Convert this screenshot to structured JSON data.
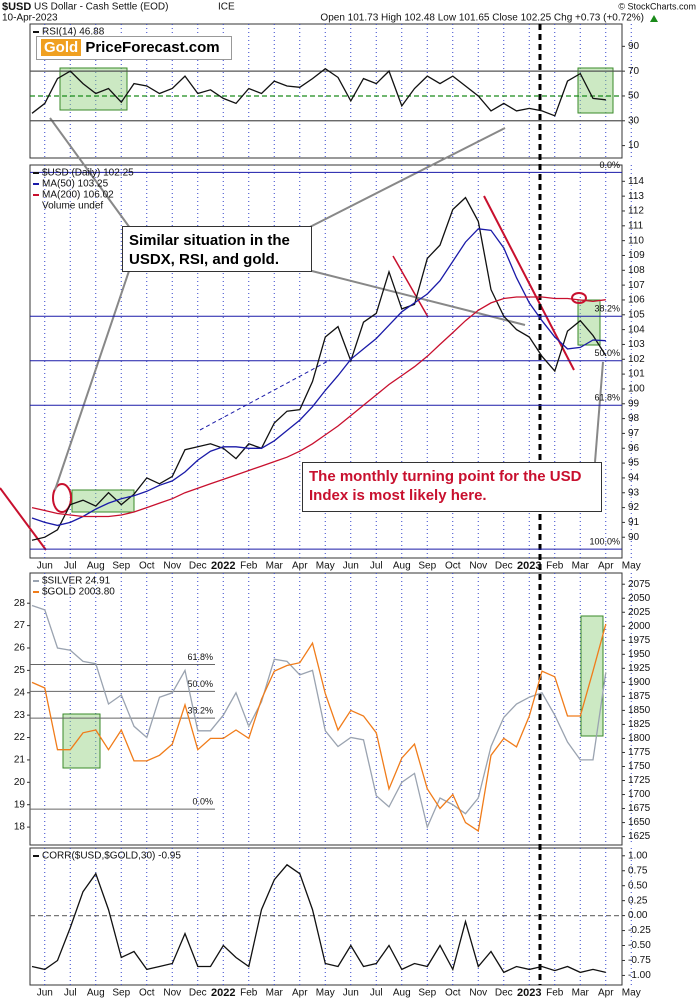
{
  "header": {
    "symbol": "$USD",
    "name": "US Dollar - Cash Settle (EOD)",
    "exchange": "ICE",
    "date": "10-Apr-2023",
    "quote": "Open 101.73  High 102.48  Low 101.65  Close 102.25  Chg +0.73 (+0.72%)",
    "watermark": "© StockCharts.com"
  },
  "logo": {
    "gold": "Gold",
    "rest": "PriceForecast.com"
  },
  "annotations": [
    "Similar situation in the USDX, RSI, and gold.",
    "The monthly turning point for the USD Index is most likely here."
  ],
  "chart_data": [
    {
      "type": "line",
      "ylim": [
        0,
        108
      ],
      "yticks": [
        10,
        30,
        50,
        70,
        90
      ],
      "ref_lines": [
        {
          "value": 70,
          "color": "#555555"
        },
        {
          "value": 30,
          "color": "#555555"
        },
        {
          "value": 50,
          "color": "#1a8a1a"
        }
      ],
      "series": [
        {
          "name": "RSI(14) 46.88",
          "color": "#111111",
          "values": [
            36,
            44,
            64,
            70,
            60,
            52,
            56,
            45,
            60,
            58,
            52,
            56,
            66,
            52,
            55,
            48,
            44,
            56,
            52,
            62,
            58,
            57,
            64,
            72,
            65,
            46,
            64,
            60,
            70,
            42,
            56,
            66,
            60,
            66,
            58,
            50,
            38,
            44,
            38,
            40,
            38,
            34,
            62,
            68,
            48,
            46.88,
            null,
            null
          ]
        }
      ]
    },
    {
      "type": "line",
      "subtitle": "Volume undef",
      "ylim": [
        88.6,
        115.1
      ],
      "yticks": [
        90,
        91,
        92,
        93,
        94,
        95,
        96,
        97,
        98,
        99,
        100,
        101,
        102,
        103,
        104,
        105,
        106,
        107,
        108,
        109,
        110,
        111,
        112,
        113,
        114
      ],
      "categories": [
        null,
        "Jun",
        null,
        "Jul",
        null,
        "Aug",
        null,
        "Sep",
        null,
        "Oct",
        null,
        "Nov",
        null,
        "Dec",
        null,
        "2022",
        null,
        "Feb",
        null,
        "Mar",
        null,
        "Apr",
        null,
        "May",
        null,
        "Jun",
        null,
        "Jul",
        null,
        "Aug",
        null,
        "Sep",
        null,
        "Oct",
        null,
        "Nov",
        null,
        "Dec",
        null,
        "2023",
        null,
        "Feb",
        null,
        "Mar",
        null,
        "Apr",
        null,
        "May"
      ],
      "fib_levels": [
        {
          "value": 114.6,
          "label": "0.0%"
        },
        {
          "value": 104.9,
          "label": "38.2%"
        },
        {
          "value": 101.9,
          "label": "50.0%"
        },
        {
          "value": 98.9,
          "label": "61.8%"
        },
        {
          "value": 89.2,
          "label": "100.0%"
        }
      ],
      "series": [
        {
          "name": "$USD (Daily) 102.25",
          "color": "#111111",
          "values": [
            89.8,
            90.0,
            90.5,
            92.2,
            92.5,
            92.1,
            93.0,
            92.2,
            92.9,
            94.0,
            93.6,
            94.1,
            95.9,
            96.1,
            96.3,
            96.0,
            95.3,
            96.3,
            96.0,
            97.7,
            98.5,
            98.6,
            100.5,
            103.5,
            104.2,
            101.9,
            104.5,
            105.1,
            107.9,
            105.4,
            105.7,
            108.8,
            109.7,
            112.1,
            112.9,
            111.3,
            106.7,
            104.9,
            104.0,
            103.5,
            102.2,
            101.2,
            103.9,
            104.6,
            103.6,
            102.25,
            null,
            null
          ]
        },
        {
          "name": "MA(50) 103.25",
          "color": "#1a1aa8",
          "values": [
            91.3,
            91.0,
            90.8,
            91.0,
            91.4,
            91.9,
            92.3,
            92.6,
            92.8,
            93.1,
            93.5,
            93.8,
            94.4,
            95.2,
            95.8,
            96.1,
            96.1,
            96.0,
            96.0,
            96.5,
            97.2,
            97.9,
            98.8,
            99.9,
            100.9,
            102.0,
            102.7,
            103.4,
            104.3,
            105.2,
            105.8,
            106.4,
            107.3,
            108.6,
            109.9,
            110.8,
            110.7,
            109.5,
            107.5,
            105.8,
            104.6,
            103.5,
            102.7,
            102.8,
            103.3,
            103.25,
            null,
            null
          ]
        },
        {
          "name": "MA(200) 106.02",
          "color": "#c8102e",
          "values": [
            92.0,
            91.8,
            91.6,
            91.5,
            91.4,
            91.4,
            91.4,
            91.5,
            91.7,
            92.0,
            92.3,
            92.6,
            93.0,
            93.3,
            93.6,
            93.9,
            94.2,
            94.5,
            94.8,
            95.1,
            95.4,
            95.8,
            96.3,
            96.9,
            97.5,
            98.2,
            98.9,
            99.6,
            100.3,
            100.9,
            101.5,
            102.2,
            103.0,
            103.8,
            104.6,
            105.3,
            105.8,
            106.1,
            106.2,
            106.2,
            106.2,
            106.1,
            106.1,
            106.0,
            105.9,
            106.02,
            null,
            null
          ]
        }
      ]
    },
    {
      "type": "line",
      "ylim": [
        1610,
        2095
      ],
      "yticks": [
        1625,
        1650,
        1675,
        1700,
        1725,
        1750,
        1775,
        1800,
        1825,
        1850,
        1875,
        1900,
        1925,
        1950,
        1975,
        2000,
        2025,
        2050,
        2075
      ],
      "y2lim": [
        17.2,
        29.35
      ],
      "y2ticks": [
        18,
        19,
        20,
        21,
        22,
        23,
        24,
        25,
        26,
        27,
        28
      ],
      "fib_levels": [
        {
          "value": 25.26,
          "label": "61.8%",
          "axis": "y2"
        },
        {
          "value": 24.06,
          "label": "50.0%",
          "axis": "y2"
        },
        {
          "value": 22.87,
          "label": "38.2%",
          "axis": "y2"
        },
        {
          "value": 18.8,
          "label": "0.0%",
          "axis": "y2"
        }
      ],
      "series": [
        {
          "name": "$SILVER 24.91",
          "color": "#9aa3b0",
          "axis": "y2",
          "values": [
            27.9,
            27.7,
            26.0,
            25.9,
            25.4,
            25.3,
            23.5,
            23.9,
            22.5,
            22.0,
            23.8,
            24.0,
            25.0,
            22.3,
            22.3,
            23.0,
            24.0,
            22.5,
            23.6,
            25.5,
            25.4,
            24.8,
            25.0,
            22.3,
            21.6,
            22.0,
            21.9,
            19.4,
            18.9,
            20.0,
            20.4,
            18.0,
            19.3,
            19.0,
            18.6,
            19.3,
            21.6,
            22.9,
            23.5,
            23.8,
            24.0,
            23.0,
            21.8,
            21.0,
            21.0,
            24.91,
            null,
            null
          ]
        },
        {
          "name": "$GOLD 2003.80",
          "color": "#f07c1a",
          "values": [
            1900,
            1890,
            1780,
            1780,
            1810,
            1815,
            1780,
            1815,
            1760,
            1760,
            1770,
            1790,
            1860,
            1780,
            1800,
            1800,
            1815,
            1800,
            1870,
            1920,
            1930,
            1935,
            1970,
            1880,
            1815,
            1850,
            1840,
            1810,
            1710,
            1765,
            1790,
            1710,
            1675,
            1700,
            1650,
            1635,
            1770,
            1800,
            1785,
            1840,
            1920,
            1910,
            1840,
            1840,
            1920,
            2003.8,
            null,
            null
          ]
        }
      ]
    },
    {
      "type": "line",
      "ylim": [
        -1.16,
        1.13
      ],
      "yticks": [
        {
          "value": -1,
          "label": "-1.00"
        },
        {
          "value": -0.75,
          "label": "-0.75"
        },
        {
          "value": -0.5,
          "label": "-0.50"
        },
        {
          "value": -0.25,
          "label": "-0.25"
        },
        {
          "value": 0,
          "label": "0.00"
        },
        {
          "value": 0.25,
          "label": "0.25"
        },
        {
          "value": 0.5,
          "label": "0.50"
        },
        {
          "value": 0.75,
          "label": "0.75"
        },
        {
          "value": 1,
          "label": "1.00"
        }
      ],
      "ref_lines": [
        {
          "value": 0,
          "color": "#777777"
        }
      ],
      "categories": [
        null,
        "Jun",
        null,
        "Jul",
        null,
        "Aug",
        null,
        "Sep",
        null,
        "Oct",
        null,
        "Nov",
        null,
        "Dec",
        null,
        "2022",
        null,
        "Feb",
        null,
        "Mar",
        null,
        "Apr",
        null,
        "May",
        null,
        "Jun",
        null,
        "Jul",
        null,
        "Aug",
        null,
        "Sep",
        null,
        "Oct",
        null,
        "Nov",
        null,
        "Dec",
        null,
        "2023",
        null,
        "Feb",
        null,
        "Mar",
        null,
        "Apr",
        null,
        "May"
      ],
      "series": [
        {
          "name": "CORR($USD,$GOLD,30) -0.95",
          "color": "#111111",
          "values": [
            -0.85,
            -0.9,
            -0.75,
            -0.2,
            0.4,
            0.7,
            0.1,
            -0.7,
            -0.6,
            -0.9,
            -0.85,
            -0.8,
            -0.3,
            -0.85,
            -0.85,
            -0.5,
            -0.7,
            -0.85,
            0.1,
            0.6,
            0.85,
            0.7,
            0.1,
            -0.8,
            -0.85,
            -0.5,
            -0.85,
            -0.8,
            -0.5,
            -0.9,
            -0.8,
            -0.85,
            -0.5,
            -0.9,
            -0.1,
            -0.85,
            -0.6,
            -0.95,
            -0.85,
            -0.9,
            -0.85,
            -0.92,
            -0.85,
            -0.95,
            -0.9,
            -0.95,
            null,
            null
          ]
        }
      ]
    }
  ]
}
